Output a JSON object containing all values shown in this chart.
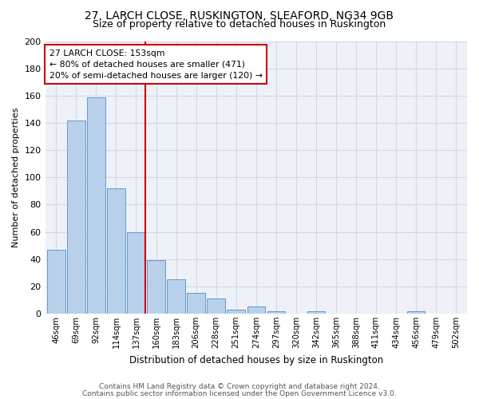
{
  "title1": "27, LARCH CLOSE, RUSKINGTON, SLEAFORD, NG34 9GB",
  "title2": "Size of property relative to detached houses in Ruskington",
  "xlabel": "Distribution of detached houses by size in Ruskington",
  "ylabel": "Number of detached properties",
  "bar_labels": [
    "46sqm",
    "69sqm",
    "92sqm",
    "114sqm",
    "137sqm",
    "160sqm",
    "183sqm",
    "206sqm",
    "228sqm",
    "251sqm",
    "274sqm",
    "297sqm",
    "320sqm",
    "342sqm",
    "365sqm",
    "388sqm",
    "411sqm",
    "434sqm",
    "456sqm",
    "479sqm",
    "502sqm"
  ],
  "bar_values": [
    47,
    142,
    159,
    92,
    60,
    39,
    25,
    15,
    11,
    3,
    5,
    2,
    0,
    2,
    0,
    0,
    0,
    0,
    2,
    0,
    0
  ],
  "bar_color": "#b8d0ea",
  "bar_edge_color": "#6699cc",
  "vline_color": "#cc0000",
  "annotation_text": "27 LARCH CLOSE: 153sqm\n← 80% of detached houses are smaller (471)\n20% of semi-detached houses are larger (120) →",
  "annotation_box_color": "#cc0000",
  "ylim": [
    0,
    200
  ],
  "yticks": [
    0,
    20,
    40,
    60,
    80,
    100,
    120,
    140,
    160,
    180,
    200
  ],
  "grid_color": "#d0d8e8",
  "background_color": "#eef2f8",
  "footer1": "Contains HM Land Registry data © Crown copyright and database right 2024.",
  "footer2": "Contains public sector information licensed under the Open Government Licence v3.0."
}
